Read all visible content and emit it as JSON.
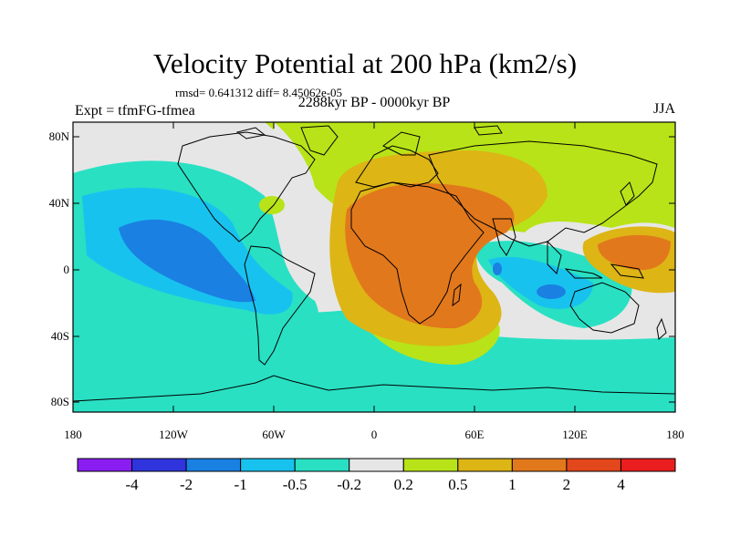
{
  "title": "Velocity Potential at 200 hPa (km2/s)",
  "stats": "rmsd= 0.641312 diff= 8.45062e-05",
  "experiment": "Expt = tfmFG-tfmea",
  "period": "2288kyr BP - 0000kyr BP",
  "season": "JJA",
  "lat_ticks": [
    "80N",
    "40N",
    "0",
    "40S",
    "80S"
  ],
  "lon_ticks": [
    "180",
    "120W",
    "60W",
    "0",
    "60E",
    "120E",
    "180"
  ],
  "colorbar": {
    "labels": [
      "-4",
      "-2",
      "-1",
      "-0.5",
      "-0.2",
      "0.2",
      "0.5",
      "1",
      "2",
      "4"
    ],
    "colors": [
      "#8a1ef2",
      "#2f34dd",
      "#1a80e2",
      "#18c2ee",
      "#29e0c3",
      "#e6e6e6",
      "#b8e318",
      "#ddb515",
      "#e2781c",
      "#e3471c",
      "#ea1e1e"
    ]
  }
}
